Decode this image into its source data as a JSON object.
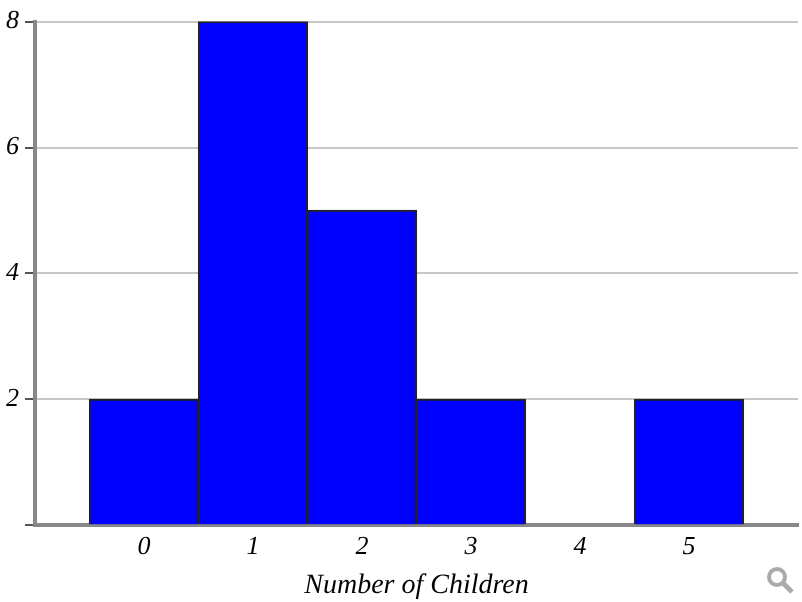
{
  "chart_data": {
    "type": "histogram",
    "xlabel": "Number of Children",
    "bins": [
      -0.5,
      0.5,
      1.5,
      2.5,
      3.5,
      4.5,
      5.5
    ],
    "values": [
      2,
      8,
      5,
      2,
      0,
      2
    ],
    "color": "#0000ff",
    "xlim": [
      -1,
      6
    ],
    "xticks": [
      0,
      1,
      2,
      3,
      4,
      5
    ],
    "ylim": [
      0,
      8
    ],
    "yticks": [
      {
        "value": 0,
        "label": null
      },
      2,
      4,
      6,
      8
    ],
    "grid": "y",
    "legend": false
  }
}
